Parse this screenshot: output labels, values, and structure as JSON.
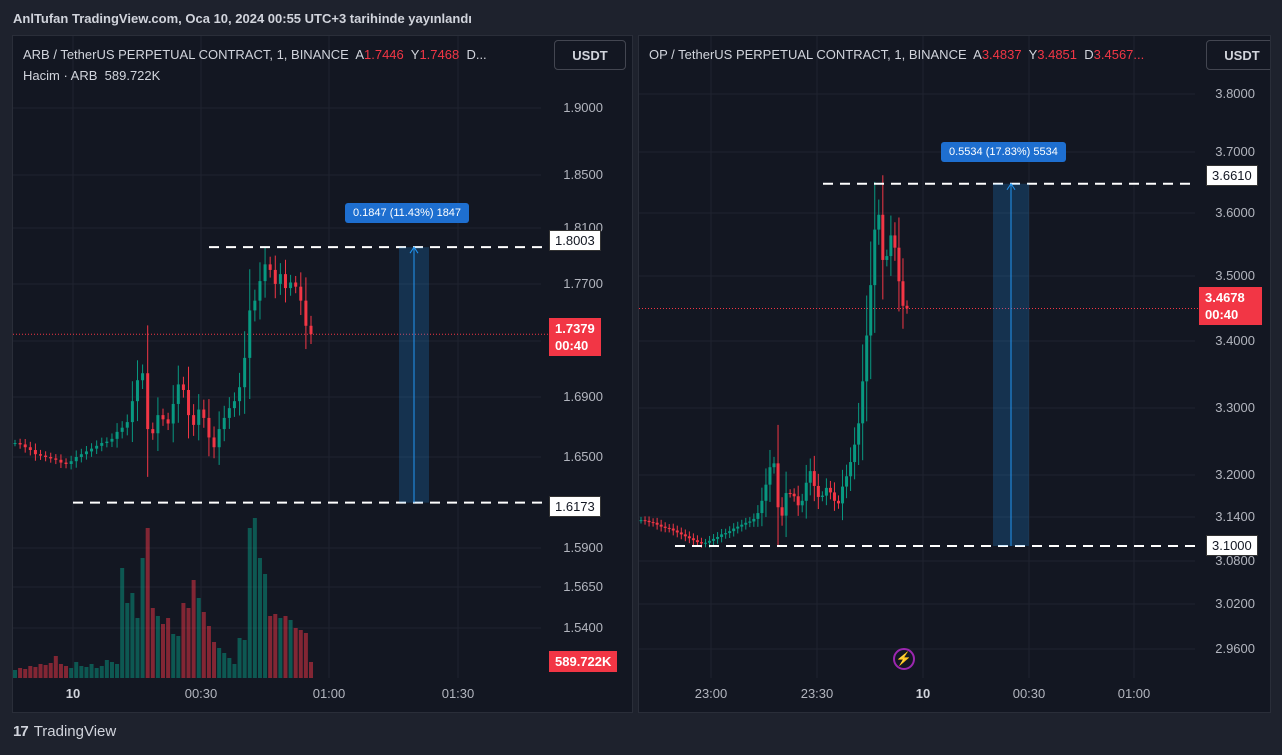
{
  "header": {
    "published": "AnlTufan TradingView.com, Oca 10, 2024 00:55 UTC+3 tarihinde yayınlandı"
  },
  "left_panel": {
    "symbol": "ARB / TetherUS PERPETUAL CONTRACT, 1, BINANCE",
    "a_label": "A",
    "a_value": "1.7446",
    "y_label": "Y",
    "y_value": "1.7468",
    "d_label": "D...",
    "volume_label": "Hacim · ARB",
    "volume_value": "589.722K",
    "currency": "USDT",
    "y_ticks": [
      "1.9000",
      "1.8500",
      "1.8100",
      "1.7700",
      "1.6900",
      "1.6500",
      "1.5900",
      "1.5650",
      "1.5400"
    ],
    "x_ticks": [
      "10",
      "00:30",
      "01:00",
      "01:30"
    ],
    "top_level": "1.8003",
    "bottom_level": "1.6173",
    "last_price": "1.7379",
    "countdown": "00:40",
    "volume_tag": "589.722K",
    "measure": "0.1847 (11.43%) 1847"
  },
  "right_panel": {
    "symbol": "OP / TetherUS PERPETUAL CONTRACT, 1, BINANCE",
    "a_label": "A",
    "a_value": "3.4837",
    "y_label": "Y",
    "y_value": "3.4851",
    "d_label": "D",
    "d_value": "3.4567...",
    "currency": "USDT",
    "y_ticks": [
      "3.8000",
      "3.7000",
      "3.6000",
      "3.5000",
      "3.4000",
      "3.3000",
      "3.2000",
      "3.1400",
      "3.0800",
      "3.0200",
      "2.9600"
    ],
    "x_ticks": [
      "23:00",
      "23:30",
      "10",
      "00:30",
      "01:00"
    ],
    "top_level": "3.6610",
    "bottom_level": "3.1000",
    "last_price": "3.4678",
    "countdown": "00:40",
    "measure": "0.5534 (17.83%) 5534"
  },
  "footer": {
    "brand": "TradingView",
    "logo": "17"
  },
  "colors": {
    "up": "#089981",
    "down": "#f23645",
    "measure": "#1e6fd0",
    "bg": "#131722"
  },
  "chart_data": [
    {
      "type": "candlestick",
      "title": "ARB / TetherUS PERPETUAL CONTRACT, 1, BINANCE",
      "x_ticks": [
        "10",
        "00:30",
        "01:00",
        "01:30"
      ],
      "ylim": [
        1.53,
        1.91
      ],
      "close_series": [
        1.66,
        1.659,
        1.657,
        1.655,
        1.652,
        1.651,
        1.65,
        1.649,
        1.648,
        1.646,
        1.645,
        1.647,
        1.65,
        1.652,
        1.654,
        1.656,
        1.658,
        1.66,
        1.661,
        1.663,
        1.668,
        1.671,
        1.675,
        1.69,
        1.705,
        1.71,
        1.67,
        1.667,
        1.68,
        1.677,
        1.674,
        1.688,
        1.702,
        1.698,
        1.68,
        1.673,
        1.684,
        1.678,
        1.664,
        1.657,
        1.67,
        1.678,
        1.685,
        1.69,
        1.7,
        1.721,
        1.755,
        1.762,
        1.776,
        1.788,
        1.784,
        1.774,
        1.781,
        1.771,
        1.775,
        1.772,
        1.762,
        1.744,
        1.738
      ],
      "levels": [
        1.8003,
        1.6173
      ],
      "last_price": 1.7379,
      "volume_last": "589.722K"
    },
    {
      "type": "candlestick",
      "title": "OP / TetherUS PERPETUAL CONTRACT, 1, BINANCE",
      "x_ticks": [
        "23:00",
        "23:30",
        "10",
        "00:30",
        "01:00"
      ],
      "ylim": [
        2.95,
        3.81
      ],
      "close_series": [
        3.14,
        3.139,
        3.137,
        3.136,
        3.133,
        3.13,
        3.128,
        3.127,
        3.124,
        3.121,
        3.118,
        3.115,
        3.112,
        3.109,
        3.106,
        3.104,
        3.105,
        3.108,
        3.111,
        3.114,
        3.118,
        3.12,
        3.123,
        3.127,
        3.13,
        3.133,
        3.136,
        3.138,
        3.142,
        3.151,
        3.17,
        3.195,
        3.222,
        3.228,
        3.16,
        3.147,
        3.182,
        3.181,
        3.177,
        3.163,
        3.17,
        3.198,
        3.216,
        3.193,
        3.176,
        3.178,
        3.19,
        3.183,
        3.17,
        3.166,
        3.192,
        3.208,
        3.23,
        3.257,
        3.29,
        3.355,
        3.426,
        3.504,
        3.59,
        3.613,
        3.543,
        3.549,
        3.581,
        3.562,
        3.51,
        3.472,
        3.468
      ],
      "levels": [
        3.661,
        3.1
      ],
      "last_price": 3.4678
    }
  ]
}
